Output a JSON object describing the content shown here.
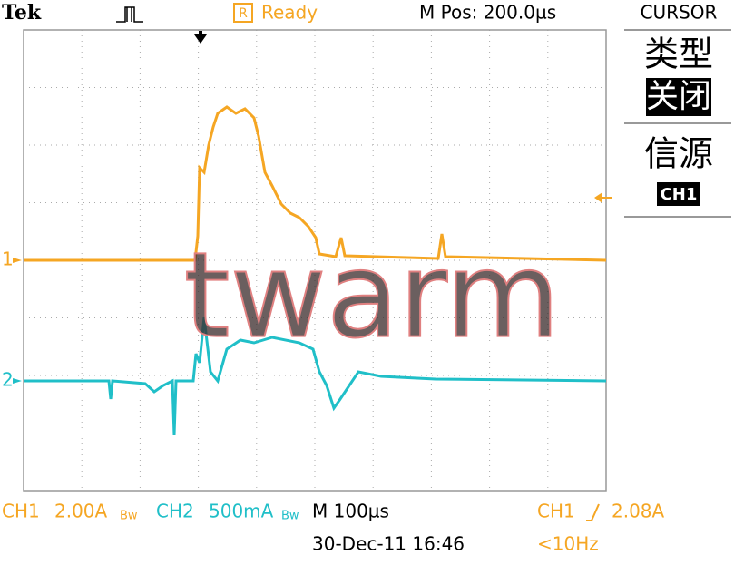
{
  "header": {
    "brand": "Tek",
    "status_icon": "R",
    "status": "Ready",
    "m_pos": "M Pos: 200.0µs"
  },
  "side_menu": {
    "title": "CURSOR",
    "items": [
      {
        "label": "类型",
        "value": "关闭"
      },
      {
        "label": "信源",
        "value": "CH1"
      }
    ]
  },
  "markers": {
    "ch1": "1",
    "ch2": "2"
  },
  "watermark": "twarm",
  "footer": {
    "ch1_label": "CH1",
    "ch1_scale": "2.00A",
    "bw1": "Bw",
    "ch2_label": "CH2",
    "ch2_scale": "500mA",
    "bw2": "Bw",
    "timebase": "M 100µs",
    "trigger_source": "CH1",
    "trigger_level": "2.08A",
    "datetime": "30-Dec-11 16:46",
    "frequency": "<10Hz"
  }
}
